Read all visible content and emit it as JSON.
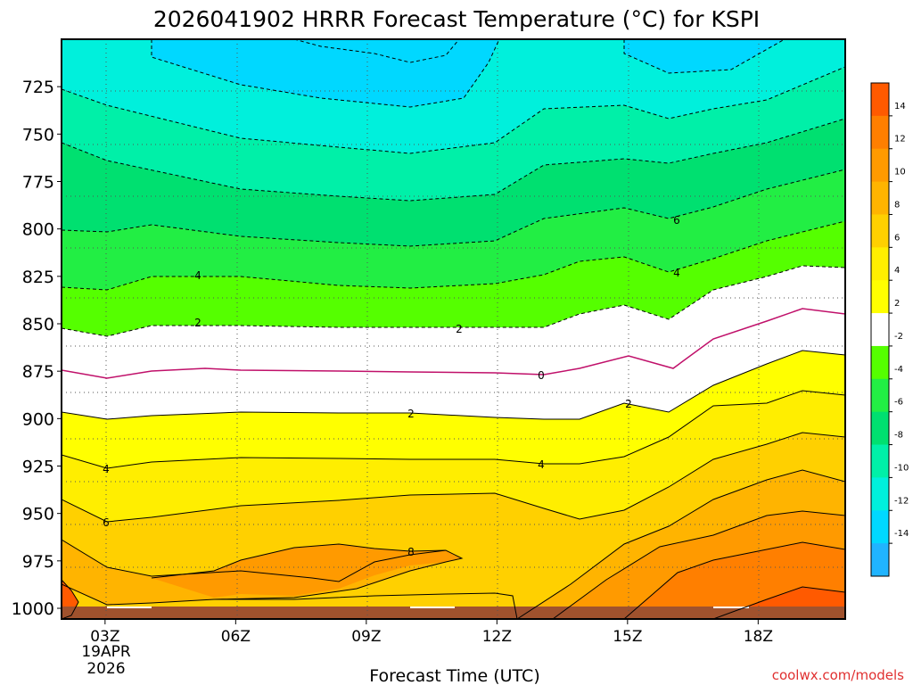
{
  "chart_data": {
    "type": "contour",
    "title": "2026041902 HRRR Forecast Temperature (°C) for KSPI",
    "xlabel": "Forecast Time (UTC)",
    "ylabel": "",
    "x_ticks": [
      "03Z",
      "06Z",
      "09Z",
      "12Z",
      "15Z",
      "18Z"
    ],
    "x_ticks_hours": [
      3,
      6,
      9,
      12,
      15,
      18
    ],
    "x_first_tick_extra": [
      "19APR",
      "2026"
    ],
    "xlim_hours": [
      2,
      20
    ],
    "y_ticks": [
      725,
      750,
      775,
      800,
      825,
      850,
      875,
      900,
      925,
      950,
      975,
      1000
    ],
    "ylim_hPa": [
      700,
      1000
    ],
    "credit": "coolwx.com/models",
    "credit_color": "#e03030",
    "colorbar": {
      "labels": [
        14,
        12,
        10,
        8,
        6,
        4,
        2,
        -2,
        -4,
        -6,
        -8,
        -10,
        -12,
        -14
      ],
      "colors": [
        "#ff5a00",
        "#ff7f00",
        "#ff9a00",
        "#ffb400",
        "#ffd000",
        "#ffee00",
        "#ffff00",
        "#ffffff",
        "#55ff00",
        "#22ee44",
        "#00e070",
        "#00f0a8",
        "#00f0dc",
        "#00d8ff",
        "#20b4ff"
      ]
    },
    "contour_labels": [
      "0",
      "2",
      "2",
      "2",
      "4",
      "4",
      "6",
      "8",
      "2",
      "4",
      "6",
      "4"
    ],
    "freezing_level_color": "#c0106a",
    "ground_color": "#a0522d"
  }
}
